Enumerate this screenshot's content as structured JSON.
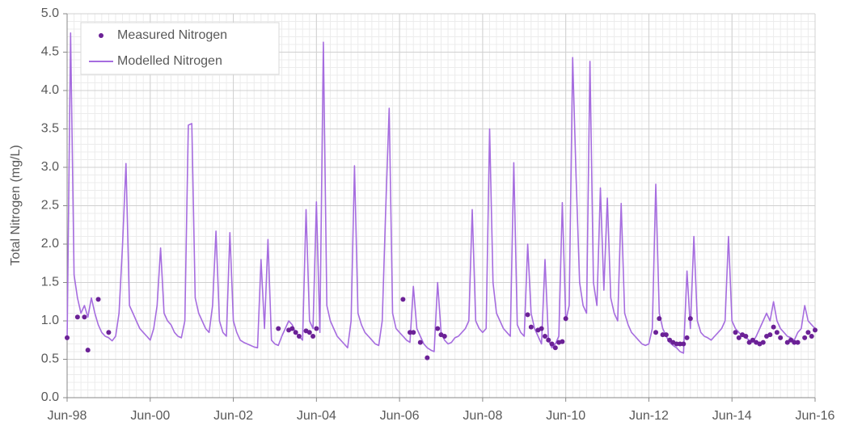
{
  "chart_data": {
    "type": "line",
    "ylabel": "Total Nitrogen (mg/L)",
    "ylim": [
      0,
      5
    ],
    "yticks": [
      {
        "value": 0,
        "label": "0.0"
      },
      0.5,
      {
        "value": 1,
        "label": "1.0"
      },
      1.5,
      {
        "value": 2,
        "label": "2.0"
      },
      2.5,
      {
        "value": 3,
        "label": "3.0"
      },
      3.5,
      {
        "value": 4,
        "label": "4.0"
      },
      4.5,
      {
        "value": 5,
        "label": "5.0"
      }
    ],
    "xlim": [
      "1998-06",
      "2016-06"
    ],
    "xticks": [
      {
        "value": "1998-06",
        "label": "Jun-98"
      },
      {
        "value": "2000-06",
        "label": "Jun-00"
      },
      {
        "value": "2002-06",
        "label": "Jun-02"
      },
      {
        "value": "2004-06",
        "label": "Jun-04"
      },
      {
        "value": "2006-06",
        "label": "Jun-06"
      },
      {
        "value": "2008-06",
        "label": "Jun-08"
      },
      {
        "value": "2010-06",
        "label": "Jun-10"
      },
      {
        "value": "2012-06",
        "label": "Jun-12"
      },
      {
        "value": "2014-06",
        "label": "Jun-14"
      },
      {
        "value": "2016-06",
        "label": "Jun-16"
      }
    ],
    "grid": true,
    "minor_grid": true,
    "legend": "upper left",
    "series": [
      {
        "name": "Measured Nitrogen",
        "mode": "markers",
        "color": "#6b2196",
        "x": [
          "1998-06",
          "1998-09",
          "1998-11",
          "1998-12",
          "1999-03",
          "1999-06",
          "2003-07",
          "2003-10",
          "2003-11",
          "2003-12",
          "2004-01",
          "2004-03",
          "2004-04",
          "2004-05",
          "2004-06",
          "2006-07",
          "2006-09",
          "2006-10",
          "2006-12",
          "2007-02",
          "2007-05",
          "2007-06",
          "2007-07",
          "2009-07",
          "2009-08",
          "2009-10",
          "2009-11",
          "2009-12",
          "2010-01",
          "2010-02",
          "2010-03",
          "2010-04",
          "2010-05",
          "2010-06",
          "2012-08",
          "2012-09",
          "2012-10",
          "2012-11",
          "2012-12",
          "2013-01",
          "2013-02",
          "2013-03",
          "2013-04",
          "2013-05",
          "2013-06",
          "2014-07",
          "2014-08",
          "2014-09",
          "2014-10",
          "2014-11",
          "2014-12",
          "2015-01",
          "2015-02",
          "2015-03",
          "2015-04",
          "2015-05",
          "2015-06",
          "2015-07",
          "2015-08",
          "2015-10",
          "2015-11",
          "2015-12",
          "2016-01",
          "2016-03",
          "2016-04",
          "2016-05",
          "2016-06"
        ],
        "values": [
          0.78,
          1.05,
          1.05,
          0.62,
          1.28,
          0.85,
          0.9,
          0.88,
          0.9,
          0.85,
          0.8,
          0.87,
          0.85,
          0.8,
          0.9,
          1.28,
          0.85,
          0.85,
          0.72,
          0.52,
          0.9,
          0.82,
          0.8,
          1.08,
          0.92,
          0.88,
          0.9,
          0.8,
          0.75,
          0.7,
          0.65,
          0.72,
          0.73,
          1.03,
          0.85,
          1.03,
          0.82,
          0.82,
          0.75,
          0.72,
          0.7,
          0.7,
          0.7,
          0.78,
          1.03,
          0.85,
          0.78,
          0.82,
          0.8,
          0.72,
          0.75,
          0.72,
          0.7,
          0.72,
          0.8,
          0.82,
          0.92,
          0.85,
          0.78,
          0.72,
          0.75,
          0.72,
          0.72,
          0.78,
          0.85,
          0.8,
          0.88
        ]
      },
      {
        "name": "Modelled Nitrogen",
        "mode": "lines",
        "color": "#a66ddf",
        "x": [
          "1998-06",
          "1998-07",
          "1998-08",
          "1998-09",
          "1998-10",
          "1998-11",
          "1998-12",
          "1999-01",
          "1999-02",
          "1999-03",
          "1999-04",
          "1999-05",
          "1999-06",
          "1999-07",
          "1999-08",
          "1999-09",
          "1999-10",
          "1999-11",
          "1999-12",
          "2000-01",
          "2000-02",
          "2000-03",
          "2000-04",
          "2000-05",
          "2000-06",
          "2000-07",
          "2000-08",
          "2000-09",
          "2000-10",
          "2000-11",
          "2000-12",
          "2001-01",
          "2001-02",
          "2001-03",
          "2001-04",
          "2001-05",
          "2001-06",
          "2001-07",
          "2001-08",
          "2001-09",
          "2001-10",
          "2001-11",
          "2001-12",
          "2002-01",
          "2002-02",
          "2002-03",
          "2002-04",
          "2002-05",
          "2002-06",
          "2002-07",
          "2002-08",
          "2002-09",
          "2002-10",
          "2002-11",
          "2002-12",
          "2003-01",
          "2003-02",
          "2003-03",
          "2003-04",
          "2003-05",
          "2003-06",
          "2003-07",
          "2003-08",
          "2003-09",
          "2003-10",
          "2003-11",
          "2003-12",
          "2004-01",
          "2004-02",
          "2004-03",
          "2004-04",
          "2004-05",
          "2004-06",
          "2004-07",
          "2004-08",
          "2004-09",
          "2004-10",
          "2004-11",
          "2004-12",
          "2005-01",
          "2005-02",
          "2005-03",
          "2005-04",
          "2005-05",
          "2005-06",
          "2005-07",
          "2005-08",
          "2005-09",
          "2005-10",
          "2005-11",
          "2005-12",
          "2006-01",
          "2006-02",
          "2006-03",
          "2006-04",
          "2006-05",
          "2006-06",
          "2006-07",
          "2006-08",
          "2006-09",
          "2006-10",
          "2006-11",
          "2006-12",
          "2007-01",
          "2007-02",
          "2007-03",
          "2007-04",
          "2007-05",
          "2007-06",
          "2007-07",
          "2007-08",
          "2007-09",
          "2007-10",
          "2007-11",
          "2007-12",
          "2008-01",
          "2008-02",
          "2008-03",
          "2008-04",
          "2008-05",
          "2008-06",
          "2008-07",
          "2008-08",
          "2008-09",
          "2008-10",
          "2008-11",
          "2008-12",
          "2009-01",
          "2009-02",
          "2009-03",
          "2009-04",
          "2009-05",
          "2009-06",
          "2009-07",
          "2009-08",
          "2009-09",
          "2009-10",
          "2009-11",
          "2009-12",
          "2010-01",
          "2010-02",
          "2010-03",
          "2010-04",
          "2010-05",
          "2010-06",
          "2010-07",
          "2010-08",
          "2010-09",
          "2010-10",
          "2010-11",
          "2010-12",
          "2011-01",
          "2011-02",
          "2011-03",
          "2011-04",
          "2011-05",
          "2011-06",
          "2011-07",
          "2011-08",
          "2011-09",
          "2011-10",
          "2011-11",
          "2011-12",
          "2012-01",
          "2012-02",
          "2012-03",
          "2012-04",
          "2012-05",
          "2012-06",
          "2012-07",
          "2012-08",
          "2012-09",
          "2012-10",
          "2012-11",
          "2012-12",
          "2013-01",
          "2013-02",
          "2013-03",
          "2013-04",
          "2013-05",
          "2013-06",
          "2013-07",
          "2013-08",
          "2013-09",
          "2013-10",
          "2013-11",
          "2013-12",
          "2014-01",
          "2014-02",
          "2014-03",
          "2014-04",
          "2014-05",
          "2014-06",
          "2014-07",
          "2014-08",
          "2014-09",
          "2014-10",
          "2014-11",
          "2014-12",
          "2015-01",
          "2015-02",
          "2015-03",
          "2015-04",
          "2015-05",
          "2015-06",
          "2015-07",
          "2015-08",
          "2015-09",
          "2015-10",
          "2015-11",
          "2015-12",
          "2016-01",
          "2016-02",
          "2016-03",
          "2016-04",
          "2016-05",
          "2016-06"
        ],
        "values": [
          0.75,
          4.75,
          1.6,
          1.3,
          1.1,
          1.2,
          1.05,
          1.3,
          1.1,
          0.95,
          0.85,
          0.8,
          0.78,
          0.74,
          0.8,
          1.1,
          1.98,
          3.05,
          1.2,
          1.1,
          1.0,
          0.9,
          0.85,
          0.8,
          0.75,
          0.9,
          1.2,
          1.95,
          1.1,
          1.0,
          0.95,
          0.85,
          0.8,
          0.78,
          1.0,
          3.55,
          3.57,
          1.3,
          1.1,
          1.0,
          0.9,
          0.85,
          1.2,
          2.17,
          1.0,
          0.85,
          0.8,
          2.15,
          1.0,
          0.85,
          0.75,
          0.72,
          0.7,
          0.68,
          0.66,
          0.65,
          1.8,
          0.9,
          2.06,
          0.75,
          0.7,
          0.68,
          0.8,
          0.9,
          1.0,
          0.95,
          0.85,
          0.8,
          0.75,
          2.45,
          1.0,
          0.9,
          2.55,
          0.85,
          4.63,
          1.2,
          1.0,
          0.9,
          0.8,
          0.75,
          0.7,
          0.65,
          1.0,
          3.02,
          1.1,
          0.95,
          0.85,
          0.8,
          0.75,
          0.7,
          0.68,
          1.0,
          2.45,
          3.77,
          1.1,
          0.9,
          0.85,
          0.8,
          0.75,
          0.72,
          1.45,
          0.9,
          0.8,
          0.7,
          0.65,
          0.62,
          0.6,
          1.5,
          0.85,
          0.75,
          0.7,
          0.72,
          0.78,
          0.8,
          0.85,
          0.9,
          1.0,
          2.45,
          1.0,
          0.9,
          0.85,
          0.9,
          3.5,
          1.5,
          1.1,
          1.0,
          0.9,
          0.85,
          0.8,
          3.06,
          0.95,
          0.85,
          0.8,
          2.0,
          1.1,
          0.9,
          0.8,
          0.7,
          1.8,
          0.75,
          0.65,
          0.7,
          0.8,
          2.54,
          1.0,
          1.2,
          4.43,
          2.85,
          1.5,
          1.2,
          1.1,
          4.38,
          1.5,
          1.2,
          2.73,
          1.4,
          2.6,
          1.3,
          1.1,
          1.0,
          2.53,
          1.1,
          0.95,
          0.85,
          0.8,
          0.75,
          0.7,
          0.68,
          0.7,
          0.9,
          2.78,
          1.1,
          0.9,
          0.8,
          0.72,
          0.68,
          0.65,
          0.6,
          0.58,
          1.65,
          0.9,
          2.1,
          1.0,
          0.85,
          0.8,
          0.78,
          0.75,
          0.8,
          0.85,
          0.9,
          1.0,
          2.1,
          1.0,
          0.9,
          0.85,
          0.8,
          0.78,
          0.75,
          0.72,
          0.8,
          0.9,
          1.0,
          1.1,
          1.0,
          1.25,
          1.0,
          0.9,
          0.85,
          0.8,
          0.78,
          0.75,
          0.85,
          0.9,
          1.2,
          1.0,
          0.95,
          0.9
        ]
      }
    ]
  }
}
